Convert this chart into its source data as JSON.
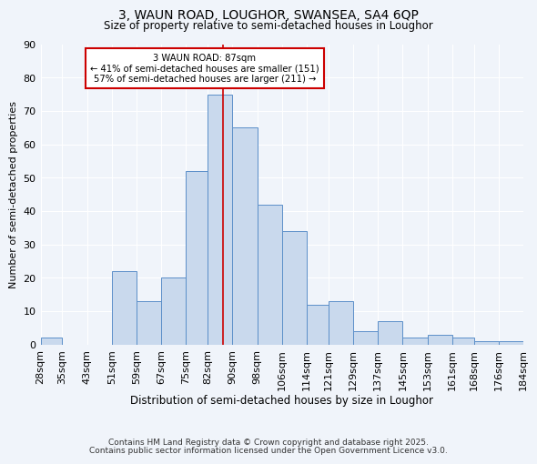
{
  "title": "3, WAUN ROAD, LOUGHOR, SWANSEA, SA4 6QP",
  "subtitle": "Size of property relative to semi-detached houses in Loughor",
  "xlabel": "Distribution of semi-detached houses by size in Loughor",
  "ylabel": "Number of semi-detached properties",
  "bar_color": "#c9d9ed",
  "bar_edge_color": "#5b8fc9",
  "bg_color": "#f0f4fa",
  "grid_color": "white",
  "property_line_x": 87,
  "property_label": "3 WAUN ROAD: 87sqm",
  "smaller_text": "← 41% of semi-detached houses are smaller (151)",
  "larger_text": "57% of semi-detached houses are larger (211) →",
  "annotation_box_color": "white",
  "annotation_box_edge": "#cc0000",
  "line_color": "#cc0000",
  "bins": [
    28,
    35,
    43,
    51,
    59,
    67,
    75,
    82,
    90,
    98,
    106,
    114,
    121,
    129,
    137,
    145,
    153,
    161,
    168,
    176,
    184
  ],
  "counts": [
    2,
    0,
    0,
    22,
    13,
    20,
    52,
    75,
    65,
    42,
    34,
    12,
    13,
    4,
    7,
    2,
    3,
    2,
    1,
    1
  ],
  "tick_labels": [
    "28sqm",
    "35sqm",
    "43sqm",
    "51sqm",
    "59sqm",
    "67sqm",
    "75sqm",
    "82sqm",
    "90sqm",
    "98sqm",
    "106sqm",
    "114sqm",
    "121sqm",
    "129sqm",
    "137sqm",
    "145sqm",
    "153sqm",
    "161sqm",
    "168sqm",
    "176sqm",
    "184sqm"
  ],
  "ylim": [
    0,
    90
  ],
  "yticks": [
    0,
    10,
    20,
    30,
    40,
    50,
    60,
    70,
    80,
    90
  ],
  "footer1": "Contains HM Land Registry data © Crown copyright and database right 2025.",
  "footer2": "Contains public sector information licensed under the Open Government Licence v3.0."
}
